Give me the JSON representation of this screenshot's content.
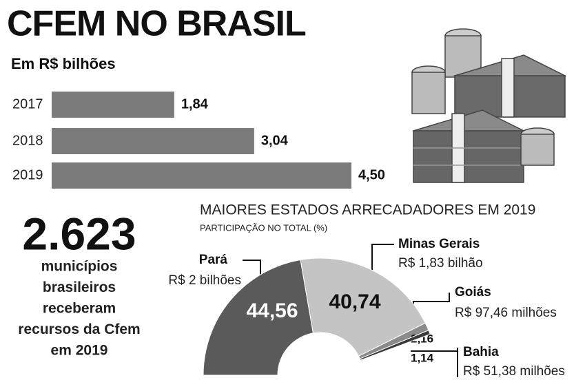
{
  "chart_data": [
    {
      "type": "bar",
      "orientation": "horizontal",
      "title": "CFEM NO BRASIL",
      "subtitle": "Em R$ bilhões",
      "categories": [
        "2017",
        "2018",
        "2019"
      ],
      "values": [
        1.84,
        3.04,
        4.5
      ],
      "value_labels": [
        "1,84",
        "3,04",
        "4,50"
      ],
      "color": "#7a7a7a"
    },
    {
      "type": "pie",
      "shape": "half-donut",
      "title": "MAIORES ESTADOS ARRECADADORES EM 2019",
      "subtitle": "PARTICIPAÇÃO NO TOTAL (%)",
      "categories": [
        "Pará",
        "Minas Gerais",
        "Goiás",
        "Bahia"
      ],
      "values": [
        44.56,
        40.74,
        2.16,
        1.14
      ],
      "value_labels": [
        "44,56",
        "40,74",
        "2,16",
        "1,14"
      ],
      "amounts": [
        "R$ 2 bilhões",
        "R$ 1,83 bilhão",
        "R$ 97,46 milhões",
        "R$ 51,38 milhões"
      ],
      "colors": [
        "#5a5a5a",
        "#c4c4c4",
        "#8a8a8a",
        "#3a3a3a"
      ]
    }
  ],
  "highlight": {
    "number": "2.623",
    "lines": [
      "municípios",
      "brasileiros",
      "receberam",
      "recursos da Cfem",
      "em 2019"
    ]
  }
}
